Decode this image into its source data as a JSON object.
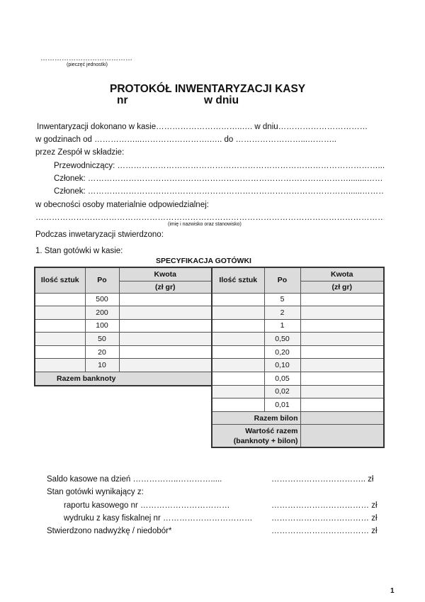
{
  "stamp": {
    "dots": "…………………………………",
    "label": "(pieczęć jednostki)"
  },
  "title": {
    "main": "PROTOKÓŁ INWENTARYZACJI KASY",
    "nr": "nr",
    "date": "w dniu"
  },
  "lines": [
    "Inwentaryzacji dokonano w kasie…………………………..…. w dniu……………………………",
    "w godzinach od ……………...…………………….….. do ……………………...………..",
    "przez Zespół w składzie:",
    "Przewodniczący: ……………………………………………………………………………………........",
    "Członek: ……………………………………………………………………………………........…………",
    "Członek: ……………………………………………………………………………………......…………",
    "w obecności osoby materialnie odpowiedzialnej:",
    "…………………………………………………………………………………………………………………......",
    "Podczas inwetaryzacji stwierdzono:",
    "1. Stan gotówki w kasie:"
  ],
  "person_caption": "(imię i nazwisko oraz stanowisko)",
  "spec_title": "SPECYFIKACJA GOTÓWKI",
  "table": {
    "headers": {
      "qty": "Ilość sztuk",
      "po": "Po",
      "amount": "Kwota",
      "unit": "(zł gr)"
    },
    "banknotes": [
      "500",
      "200",
      "100",
      "50",
      "20",
      "10"
    ],
    "banknotes_total": "Razem banknoty",
    "coins": [
      "5",
      "2",
      "1",
      "0,50",
      "0,20",
      "0,10",
      "0,05",
      "0,02",
      "0,01"
    ],
    "coins_total": "Razem bilon",
    "grand_total_1": "Wartość razem",
    "grand_total_2": "(banknoty + bilon)"
  },
  "summary": [
    {
      "label": "Saldo kasowe na dzień ……………..………….....",
      "value": "…………………………….. zł"
    },
    {
      "label": "Stan gotówki wynikający z:",
      "value": ""
    },
    {
      "label": "raportu kasowego nr ……………………………",
      "value": "……………………………… zł"
    },
    {
      "label": "wydruku z kasy fiskalnej nr ……………………………",
      "value": "……………………………… zł"
    },
    {
      "label": "Stwierdzono nadwyżkę / niedobór*",
      "value": "……………………………… zł"
    }
  ],
  "page_number": "1"
}
